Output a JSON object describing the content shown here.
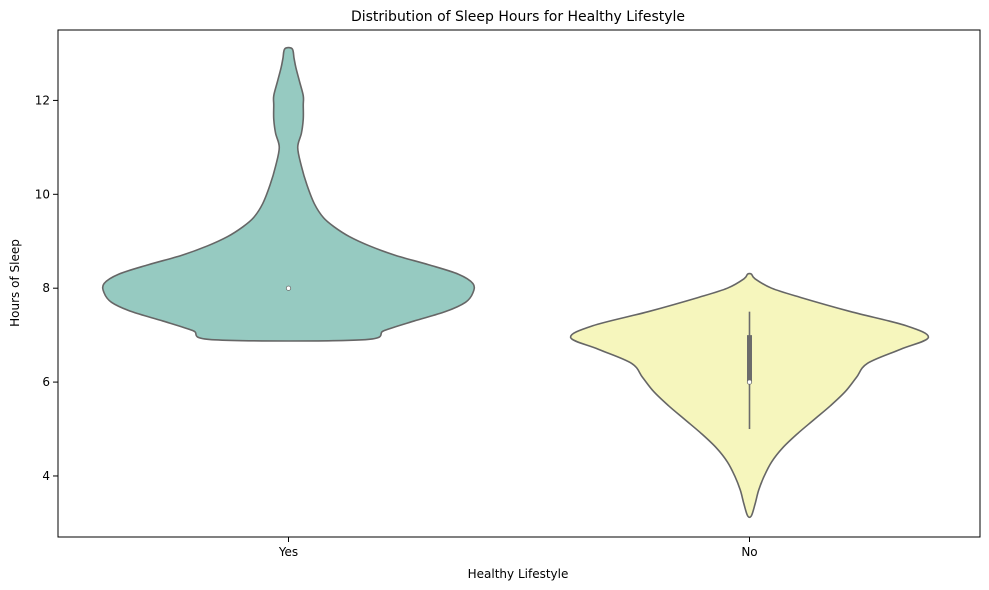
{
  "chart_data": {
    "type": "violin",
    "title": "Distribution of Sleep Hours for Healthy Lifestyle",
    "xlabel": "Healthy Lifestyle",
    "ylabel": "Hours of Sleep",
    "categories": [
      "Yes",
      "No"
    ],
    "ylim": [
      2.7,
      13.5
    ],
    "yticks": [
      4,
      6,
      8,
      10,
      12
    ],
    "grid": false,
    "legend": "none",
    "series": [
      {
        "category": "Yes",
        "color": "#96cac1",
        "median": 8.0,
        "q1": 8.0,
        "q3": 8.0,
        "whisker_low": 8.0,
        "whisker_high": 8.0,
        "min": 6.9,
        "max": 13.1,
        "density_profile": [
          [
            6.9,
            0.4
          ],
          [
            7.1,
            0.52
          ],
          [
            7.3,
            0.68
          ],
          [
            7.5,
            0.85
          ],
          [
            7.7,
            0.96
          ],
          [
            7.9,
            1.0
          ],
          [
            8.1,
            1.0
          ],
          [
            8.3,
            0.92
          ],
          [
            8.5,
            0.76
          ],
          [
            8.7,
            0.58
          ],
          [
            8.9,
            0.44
          ],
          [
            9.1,
            0.33
          ],
          [
            9.3,
            0.25
          ],
          [
            9.5,
            0.19
          ],
          [
            9.8,
            0.14
          ],
          [
            10.2,
            0.1
          ],
          [
            10.6,
            0.07
          ],
          [
            11.0,
            0.05
          ],
          [
            11.3,
            0.07
          ],
          [
            11.6,
            0.08
          ],
          [
            11.9,
            0.08
          ],
          [
            12.1,
            0.08
          ],
          [
            12.4,
            0.06
          ],
          [
            12.7,
            0.04
          ],
          [
            12.9,
            0.03
          ],
          [
            13.1,
            0.02
          ]
        ]
      },
      {
        "category": "No",
        "color": "#f6f6bd",
        "median": 6.0,
        "q1": 6.0,
        "q3": 7.0,
        "whisker_low": 5.0,
        "whisker_high": 7.5,
        "min": 3.15,
        "max": 8.3,
        "density_profile": [
          [
            3.15,
            0.01
          ],
          [
            3.4,
            0.03
          ],
          [
            3.7,
            0.05
          ],
          [
            4.0,
            0.08
          ],
          [
            4.3,
            0.12
          ],
          [
            4.6,
            0.18
          ],
          [
            4.9,
            0.26
          ],
          [
            5.2,
            0.35
          ],
          [
            5.5,
            0.44
          ],
          [
            5.8,
            0.52
          ],
          [
            6.1,
            0.58
          ],
          [
            6.4,
            0.64
          ],
          [
            6.7,
            0.82
          ],
          [
            6.95,
            0.97
          ],
          [
            7.2,
            0.85
          ],
          [
            7.5,
            0.55
          ],
          [
            7.8,
            0.28
          ],
          [
            8.0,
            0.12
          ],
          [
            8.2,
            0.03
          ],
          [
            8.3,
            0.01
          ]
        ]
      }
    ]
  }
}
